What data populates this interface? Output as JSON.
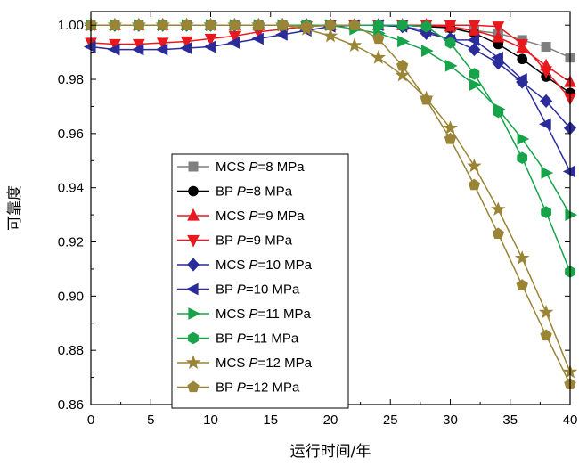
{
  "chart_data": {
    "type": "line",
    "xlabel": "运行时间/年",
    "ylabel": "可靠度",
    "xlim": [
      0,
      40
    ],
    "ylim": [
      0.86,
      1.005
    ],
    "xticks": [
      0,
      5,
      10,
      15,
      20,
      25,
      30,
      35,
      40
    ],
    "yticks": [
      0.86,
      0.88,
      0.9,
      0.92,
      0.94,
      0.96,
      0.98,
      1.0
    ],
    "grid": false,
    "legend_position": "left",
    "series": [
      {
        "name": "MCS P=8 MPa",
        "legend_prefix": "MCS ",
        "legend_value": "=8 MPa",
        "color": "#7f7f7f",
        "marker": "square",
        "x": [
          0,
          2,
          4,
          6,
          8,
          10,
          12,
          14,
          16,
          18,
          20,
          22,
          24,
          26,
          28,
          30,
          32,
          34,
          36,
          38,
          40
        ],
        "y": [
          1.0,
          1.0,
          1.0,
          1.0,
          1.0,
          1.0,
          1.0,
          1.0,
          1.0,
          1.0,
          1.0,
          1.0,
          1.0,
          1.0,
          1.0,
          0.999,
          0.998,
          0.997,
          0.9945,
          0.992,
          0.988
        ]
      },
      {
        "name": "BP P=8 MPa",
        "legend_prefix": "BP ",
        "legend_value": "=8 MPa",
        "color": "#000000",
        "marker": "circle",
        "x": [
          0,
          2,
          4,
          6,
          8,
          10,
          12,
          14,
          16,
          18,
          20,
          22,
          24,
          26,
          28,
          30,
          32,
          34,
          36,
          38,
          40
        ],
        "y": [
          1.0,
          1.0,
          1.0,
          1.0,
          1.0,
          1.0,
          1.0,
          1.0,
          1.0,
          1.0,
          1.0,
          1.0,
          1.0,
          1.0,
          0.9995,
          0.999,
          0.997,
          0.993,
          0.9875,
          0.981,
          0.975
        ]
      },
      {
        "name": "MCS P=9 MPa",
        "legend_prefix": "MCS ",
        "legend_value": "=9 MPa",
        "color": "#e8191e",
        "marker": "triangle-up",
        "x": [
          0,
          2,
          4,
          6,
          8,
          10,
          12,
          14,
          16,
          18,
          20,
          22,
          24,
          26,
          28,
          30,
          32,
          34,
          36,
          38,
          40
        ],
        "y": [
          1.0,
          1.0,
          1.0,
          1.0,
          1.0,
          1.0,
          1.0,
          1.0,
          1.0,
          1.0,
          1.0,
          1.0,
          1.0,
          1.0,
          1.0,
          0.9995,
          0.998,
          0.9955,
          0.9915,
          0.985,
          0.979
        ]
      },
      {
        "name": "BP P=9 MPa",
        "legend_prefix": "BP ",
        "legend_value": "=9 MPa",
        "color": "#e8191e",
        "marker": "triangle-down",
        "x": [
          0,
          2,
          4,
          6,
          8,
          10,
          12,
          14,
          16,
          18,
          20,
          22,
          24,
          26,
          28,
          30,
          32,
          34,
          36,
          38,
          40
        ],
        "y": [
          0.9935,
          0.993,
          0.993,
          0.9935,
          0.994,
          0.995,
          0.996,
          0.9975,
          0.9985,
          0.9995,
          1.0,
          1.0,
          1.0,
          1.0,
          1.0,
          1.0,
          1.0,
          0.9995,
          0.993,
          0.983,
          0.973
        ]
      },
      {
        "name": "MCS P=10 MPa",
        "legend_prefix": "MCS ",
        "legend_value": "=10 MPa",
        "color": "#2b2c9a",
        "marker": "diamond",
        "x": [
          0,
          2,
          4,
          6,
          8,
          10,
          12,
          14,
          16,
          18,
          20,
          22,
          24,
          26,
          28,
          30,
          32,
          34,
          36,
          38,
          40
        ],
        "y": [
          1.0,
          1.0,
          1.0,
          1.0,
          1.0,
          1.0,
          1.0,
          1.0,
          1.0,
          1.0,
          1.0,
          1.0,
          1.0,
          0.9995,
          0.997,
          0.995,
          0.991,
          0.986,
          0.979,
          0.972,
          0.962
        ]
      },
      {
        "name": "BP P=10 MPa",
        "legend_prefix": "BP ",
        "legend_value": "=10 MPa",
        "color": "#2b2c9a",
        "marker": "triangle-left",
        "x": [
          0,
          2,
          4,
          6,
          8,
          10,
          12,
          14,
          16,
          18,
          20,
          22,
          24,
          26,
          28,
          30,
          32,
          34,
          36,
          38,
          40
        ],
        "y": [
          0.992,
          0.991,
          0.991,
          0.991,
          0.9915,
          0.992,
          0.9935,
          0.995,
          0.9965,
          0.998,
          0.9995,
          1.0,
          1.0,
          0.9995,
          0.998,
          0.9945,
          0.9945,
          0.988,
          0.98,
          0.9635,
          0.946
        ]
      },
      {
        "name": "MCS P=11 MPa",
        "legend_prefix": "MCS ",
        "legend_value": "=11 MPa",
        "color": "#16a34a",
        "marker": "triangle-right",
        "x": [
          0,
          2,
          4,
          6,
          8,
          10,
          12,
          14,
          16,
          18,
          20,
          22,
          24,
          26,
          28,
          30,
          32,
          34,
          36,
          38,
          40
        ],
        "y": [
          1.0,
          1.0,
          1.0,
          1.0,
          1.0,
          1.0,
          1.0,
          1.0,
          1.0,
          1.0,
          1.0,
          0.9985,
          0.997,
          0.994,
          0.9905,
          0.985,
          0.978,
          0.969,
          0.958,
          0.9455,
          0.93
        ]
      },
      {
        "name": "BP P=11 MPa",
        "legend_prefix": "BP ",
        "legend_value": "=11 MPa",
        "color": "#16a34a",
        "marker": "hexagon",
        "x": [
          0,
          2,
          4,
          6,
          8,
          10,
          12,
          14,
          16,
          18,
          20,
          22,
          24,
          26,
          28,
          30,
          32,
          34,
          36,
          38,
          40
        ],
        "y": [
          1.0,
          1.0,
          1.0,
          1.0,
          1.0,
          1.0,
          1.0,
          1.0,
          1.0,
          1.0,
          1.0,
          1.0,
          1.0,
          1.0,
          0.9995,
          0.9935,
          0.982,
          0.968,
          0.951,
          0.931,
          0.909
        ]
      },
      {
        "name": "MCS P=12 MPa",
        "legend_prefix": "MCS ",
        "legend_value": "=12 MPa",
        "color": "#9a8436",
        "marker": "star",
        "x": [
          0,
          2,
          4,
          6,
          8,
          10,
          12,
          14,
          16,
          18,
          20,
          22,
          24,
          26,
          28,
          30,
          32,
          34,
          36,
          38,
          40
        ],
        "y": [
          1.0,
          1.0,
          1.0,
          1.0,
          1.0,
          1.0,
          1.0,
          1.0,
          1.0,
          0.9985,
          0.996,
          0.9925,
          0.988,
          0.9815,
          0.973,
          0.962,
          0.948,
          0.932,
          0.914,
          0.894,
          0.872
        ]
      },
      {
        "name": "BP P=12 MPa",
        "legend_prefix": "BP ",
        "legend_value": "=12 MPa",
        "color": "#9a8436",
        "marker": "pentagon",
        "x": [
          0,
          2,
          4,
          6,
          8,
          10,
          12,
          14,
          16,
          18,
          20,
          22,
          24,
          26,
          28,
          30,
          32,
          34,
          36,
          38,
          40
        ],
        "y": [
          1.0,
          1.0,
          1.0,
          1.0,
          1.0,
          1.0,
          1.0,
          1.0,
          1.0,
          0.9995,
          1.0,
          1.0,
          0.995,
          0.985,
          0.9725,
          0.958,
          0.941,
          0.923,
          0.904,
          0.8855,
          0.8675
        ]
      }
    ]
  }
}
